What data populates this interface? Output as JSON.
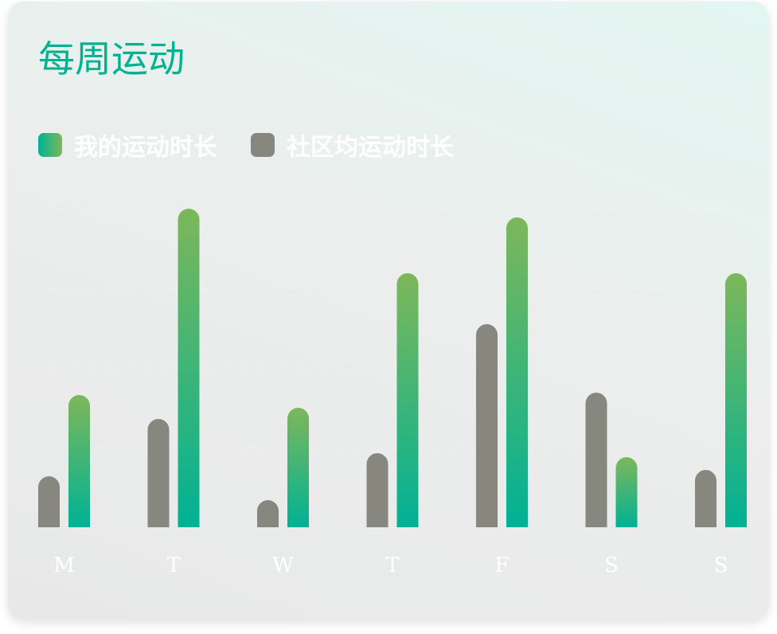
{
  "title": "每周运动",
  "legend": {
    "mine": "我的运动时长",
    "community": "社区均运动时长"
  },
  "colors": {
    "title": "#00b28f",
    "mine_top": "#7db75a",
    "mine_bottom": "#00b295",
    "community": "#878780"
  },
  "chart_data": {
    "type": "bar",
    "title": "每周运动",
    "categories": [
      "M",
      "T",
      "W",
      "T",
      "F",
      "S",
      "S"
    ],
    "series": [
      {
        "name": "社区均运动时长",
        "values": [
          64,
          136,
          34,
          93,
          255,
          169,
          72
        ]
      },
      {
        "name": "我的运动时长",
        "values": [
          166,
          400,
          150,
          319,
          389,
          88,
          319
        ]
      }
    ],
    "ylim": [
      0,
      400
    ],
    "grid": true,
    "legend_position": "top-left"
  }
}
